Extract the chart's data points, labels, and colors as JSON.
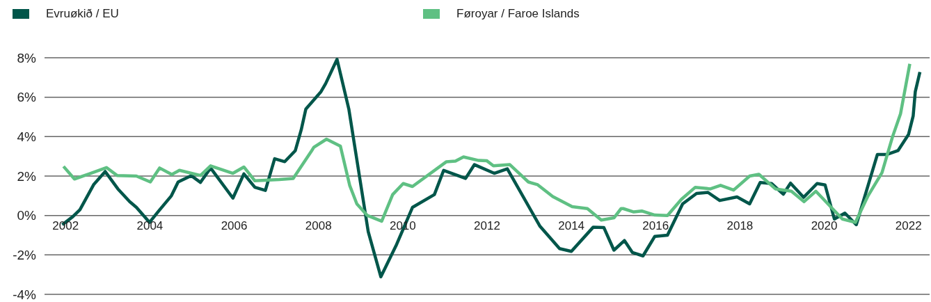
{
  "chart_data": {
    "type": "line",
    "legend": "top left",
    "grid": "y",
    "line_style": "solid",
    "marker": "none",
    "xlim": [
      2001.5,
      2022.5
    ],
    "xticks": [
      2002,
      2004,
      2006,
      2008,
      2010,
      2012,
      2014,
      2016,
      2018,
      2020,
      2022
    ],
    "ylim": [
      -4,
      8
    ],
    "yticks": [
      {
        "value": -4,
        "label": "-4%"
      },
      {
        "value": -2,
        "label": "-2%"
      },
      {
        "value": 0,
        "label": "0%"
      },
      {
        "value": 2,
        "label": "2%"
      },
      {
        "value": 4,
        "label": "4%"
      },
      {
        "value": 6,
        "label": "6%"
      },
      {
        "value": 8,
        "label": "8%"
      }
    ],
    "series": [
      {
        "name": "Evruøkið / EU",
        "color": "#00564a",
        "x": [
          2001.92,
          2002.17,
          2002.34,
          2002.67,
          2002.94,
          2003.24,
          2003.52,
          2003.68,
          2003.99,
          2004.21,
          2004.51,
          2004.67,
          2004.98,
          2005.2,
          2005.44,
          2005.97,
          2006.23,
          2006.49,
          2006.74,
          2006.96,
          2007.2,
          2007.45,
          2007.59,
          2007.7,
          2008.06,
          2008.17,
          2008.44,
          2008.72,
          2009.18,
          2009.48,
          2009.84,
          2010.23,
          2010.75,
          2010.97,
          2011.49,
          2011.7,
          2012.17,
          2012.48,
          2013.25,
          2013.72,
          2014.0,
          2014.52,
          2014.77,
          2015.01,
          2015.26,
          2015.45,
          2015.7,
          2015.98,
          2016.28,
          2016.64,
          2016.97,
          2017.24,
          2017.52,
          2017.93,
          2018.23,
          2018.48,
          2018.75,
          2019.03,
          2019.2,
          2019.51,
          2019.83,
          2020.02,
          2020.24,
          2020.49,
          2020.76,
          2021.26,
          2021.48,
          2021.75,
          2022.0,
          2022.11,
          2022.16,
          2022.27
        ],
        "values": [
          -0.47,
          -0.06,
          0.29,
          1.58,
          2.23,
          1.35,
          0.7,
          0.41,
          -0.35,
          0.23,
          1.0,
          1.7,
          2.02,
          1.68,
          2.41,
          0.88,
          2.11,
          1.43,
          1.27,
          2.88,
          2.73,
          3.29,
          4.34,
          5.4,
          6.28,
          6.69,
          7.92,
          5.4,
          -0.82,
          -3.11,
          -1.53,
          0.41,
          1.06,
          2.29,
          1.88,
          2.58,
          2.14,
          2.37,
          -0.53,
          -1.68,
          -1.82,
          -0.59,
          -0.61,
          -1.76,
          -1.27,
          -1.88,
          -2.05,
          -1.06,
          -1.0,
          0.59,
          1.12,
          1.17,
          0.76,
          0.94,
          0.59,
          1.67,
          1.62,
          1.08,
          1.64,
          0.92,
          1.62,
          1.55,
          -0.18,
          0.12,
          -0.47,
          3.09,
          3.09,
          3.29,
          4.11,
          5.05,
          6.28,
          7.28
        ]
      },
      {
        "name": "Føroyar / Faroe Islands",
        "color": "#5fc083",
        "x": [
          2001.95,
          2002.21,
          2002.56,
          2002.97,
          2003.22,
          2003.68,
          2004.01,
          2004.23,
          2004.52,
          2004.7,
          2005.2,
          2005.44,
          2005.97,
          2006.23,
          2006.49,
          2007.07,
          2007.4,
          2007.84,
          2007.89,
          2008.19,
          2008.52,
          2008.74,
          2008.91,
          2009.16,
          2009.5,
          2009.76,
          2010.01,
          2010.23,
          2011.03,
          2011.25,
          2011.44,
          2011.8,
          2011.99,
          2012.15,
          2012.54,
          2012.98,
          2013.2,
          2013.56,
          2014.02,
          2014.38,
          2014.71,
          2015.01,
          2015.18,
          2015.23,
          2015.48,
          2015.67,
          2015.98,
          2016.28,
          2016.61,
          2016.94,
          2017.3,
          2017.54,
          2017.85,
          2018.23,
          2018.45,
          2018.84,
          2019.22,
          2019.52,
          2019.8,
          2020.43,
          2020.74,
          2021.04,
          2021.37,
          2021.62,
          2021.81,
          2022.03
        ],
        "values": [
          2.49,
          1.85,
          2.11,
          2.43,
          2.03,
          2.0,
          1.7,
          2.41,
          2.08,
          2.29,
          2.03,
          2.52,
          2.14,
          2.46,
          1.76,
          1.82,
          1.88,
          3.29,
          3.46,
          3.87,
          3.52,
          1.53,
          0.59,
          0.0,
          -0.29,
          1.06,
          1.62,
          1.47,
          2.72,
          2.76,
          2.97,
          2.79,
          2.78,
          2.52,
          2.58,
          1.7,
          1.56,
          0.96,
          0.45,
          0.35,
          -0.23,
          -0.12,
          0.35,
          0.35,
          0.18,
          0.23,
          0.02,
          0.0,
          0.82,
          1.43,
          1.35,
          1.53,
          1.29,
          2.0,
          2.09,
          1.35,
          1.23,
          0.7,
          1.23,
          -0.18,
          -0.35,
          1.0,
          2.17,
          3.99,
          5.16,
          7.69
        ]
      }
    ]
  }
}
